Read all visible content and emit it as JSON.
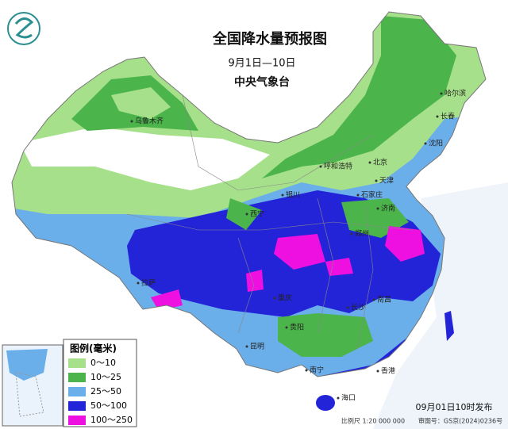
{
  "header": {
    "title": "全国降水量预报图",
    "date_range": "9月1日—10日",
    "issuer": "中央气象台"
  },
  "legend": {
    "title": "图例(毫米)",
    "items": [
      {
        "label": "0～10",
        "color": "#a6e08a"
      },
      {
        "label": "10～25",
        "color": "#4bb44a"
      },
      {
        "label": "25～50",
        "color": "#6aaeea"
      },
      {
        "label": "50～100",
        "color": "#2323d8"
      },
      {
        "label": "100～250",
        "color": "#ee10e0"
      }
    ]
  },
  "cities": [
    "乌鲁木齐",
    "哈尔滨",
    "长春",
    "沈阳",
    "呼和浩特",
    "北京",
    "天津",
    "银川",
    "石家庄",
    "济南",
    "西宁",
    "郑州",
    "拉萨",
    "重庆",
    "长沙",
    "南昌",
    "贵阳",
    "昆明",
    "南宁",
    "香港",
    "海口"
  ],
  "footer": {
    "issued": "09月01日10时发布",
    "scale": "比例尺 1:20 000 000",
    "approval": "审图号：GS京(2024)0236号"
  }
}
